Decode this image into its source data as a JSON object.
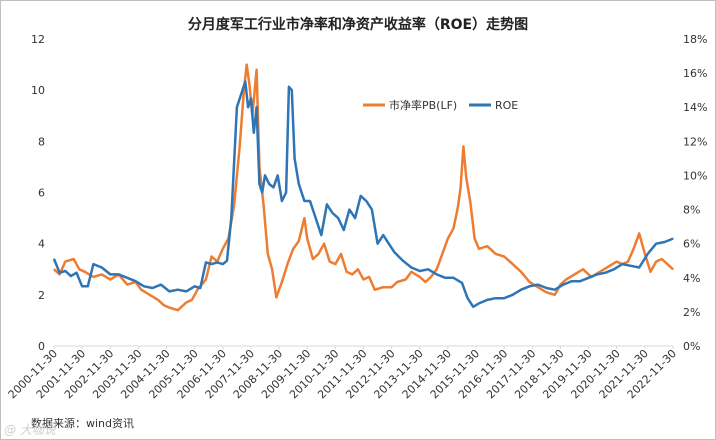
{
  "chart_data": {
    "type": "line",
    "title": "分月度军工行业市净率和净资产收益率（ROE）走势图",
    "source": "数据来源：wind资讯",
    "watermark": "@ 大咖说",
    "legend_position": "top-center",
    "grid": false,
    "y_left": {
      "ticks": [
        "0",
        "2",
        "4",
        "6",
        "8",
        "10",
        "12"
      ],
      "range": [
        0,
        12
      ]
    },
    "y_right": {
      "ticks": [
        "0%",
        "2%",
        "4%",
        "6%",
        "8%",
        "10%",
        "12%",
        "14%",
        "16%",
        "18%"
      ],
      "range": [
        0,
        18
      ]
    },
    "x_ticks": [
      "2000-11-30",
      "2001-11-30",
      "2002-11-30",
      "2003-11-30",
      "2004-11-30",
      "2005-11-30",
      "2006-11-30",
      "2007-11-30",
      "2008-11-30",
      "2009-11-30",
      "2010-11-30",
      "2011-11-30",
      "2012-11-30",
      "2013-11-30",
      "2014-11-30",
      "2015-11-30",
      "2016-11-30",
      "2017-11-30",
      "2018-11-30",
      "2019-11-30",
      "2020-11-30",
      "2021-11-30",
      "2022-11-30"
    ],
    "series": [
      {
        "name": "市净率PB(LF)",
        "axis": "left",
        "color": "#ed7d31",
        "x": [
          2000.9,
          2001.1,
          2001.3,
          2001.6,
          2001.8,
          2002.0,
          2002.3,
          2002.6,
          2002.9,
          2003.2,
          2003.5,
          2003.8,
          2004.0,
          2004.3,
          2004.6,
          2004.8,
          2005.0,
          2005.3,
          2005.6,
          2005.8,
          2006.0,
          2006.3,
          2006.5,
          2006.7,
          2006.9,
          2007.1,
          2007.3,
          2007.5,
          2007.65,
          2007.75,
          2007.85,
          2007.95,
          2008.1,
          2008.2,
          2008.35,
          2008.5,
          2008.65,
          2008.8,
          2009.0,
          2009.2,
          2009.4,
          2009.6,
          2009.8,
          2009.9,
          2010.1,
          2010.3,
          2010.5,
          2010.7,
          2010.9,
          2011.1,
          2011.3,
          2011.5,
          2011.7,
          2011.9,
          2012.1,
          2012.3,
          2012.6,
          2012.9,
          2013.1,
          2013.4,
          2013.6,
          2013.9,
          2014.1,
          2014.3,
          2014.5,
          2014.7,
          2014.9,
          2015.1,
          2015.25,
          2015.35,
          2015.45,
          2015.55,
          2015.7,
          2015.85,
          2016.0,
          2016.3,
          2016.6,
          2016.9,
          2017.2,
          2017.5,
          2017.8,
          2018.1,
          2018.4,
          2018.7,
          2018.9,
          2019.1,
          2019.4,
          2019.7,
          2020.0,
          2020.3,
          2020.6,
          2020.9,
          2021.1,
          2021.3,
          2021.5,
          2021.7,
          2021.9,
          2022.1,
          2022.3,
          2022.5,
          2022.7,
          2022.9
        ],
        "y": [
          3.0,
          2.8,
          3.3,
          3.4,
          3.0,
          2.9,
          2.7,
          2.8,
          2.6,
          2.8,
          2.4,
          2.5,
          2.2,
          2.0,
          1.8,
          1.6,
          1.5,
          1.4,
          1.7,
          1.8,
          2.2,
          2.6,
          3.5,
          3.3,
          3.8,
          4.2,
          5.5,
          7.8,
          10.0,
          11.0,
          10.2,
          9.0,
          10.8,
          7.0,
          5.5,
          3.6,
          3.0,
          1.9,
          2.5,
          3.2,
          3.8,
          4.1,
          5.0,
          4.2,
          3.4,
          3.6,
          4.0,
          3.3,
          3.2,
          3.6,
          2.9,
          2.8,
          3.0,
          2.6,
          2.7,
          2.2,
          2.3,
          2.3,
          2.5,
          2.6,
          2.9,
          2.7,
          2.5,
          2.7,
          3.0,
          3.6,
          4.2,
          4.6,
          5.4,
          6.2,
          7.8,
          6.6,
          5.6,
          4.2,
          3.8,
          3.9,
          3.6,
          3.5,
          3.2,
          2.9,
          2.5,
          2.3,
          2.1,
          2.0,
          2.4,
          2.6,
          2.8,
          3.0,
          2.7,
          2.9,
          3.1,
          3.3,
          3.2,
          3.3,
          3.8,
          4.4,
          3.6,
          2.9,
          3.3,
          3.4,
          3.2,
          3.0
        ]
      },
      {
        "name": "ROE",
        "axis": "right",
        "color": "#2e75b6",
        "x": [
          2000.9,
          2001.1,
          2001.3,
          2001.5,
          2001.7,
          2001.9,
          2002.1,
          2002.3,
          2002.6,
          2002.9,
          2003.2,
          2003.5,
          2003.8,
          2004.1,
          2004.4,
          2004.7,
          2005.0,
          2005.3,
          2005.6,
          2005.9,
          2006.1,
          2006.3,
          2006.5,
          2006.7,
          2006.9,
          2007.05,
          2007.2,
          2007.4,
          2007.6,
          2007.7,
          2007.8,
          2007.9,
          2008.0,
          2008.1,
          2008.2,
          2008.3,
          2008.4,
          2008.55,
          2008.7,
          2008.85,
          2009.0,
          2009.15,
          2009.25,
          2009.35,
          2009.45,
          2009.6,
          2009.8,
          2010.0,
          2010.2,
          2010.4,
          2010.6,
          2010.8,
          2011.0,
          2011.2,
          2011.4,
          2011.6,
          2011.8,
          2012.0,
          2012.2,
          2012.4,
          2012.6,
          2012.8,
          2013.0,
          2013.3,
          2013.6,
          2013.9,
          2014.2,
          2014.5,
          2014.8,
          2015.1,
          2015.4,
          2015.6,
          2015.8,
          2016.0,
          2016.3,
          2016.6,
          2016.9,
          2017.2,
          2017.5,
          2017.8,
          2018.1,
          2018.4,
          2018.7,
          2019.0,
          2019.3,
          2019.6,
          2019.9,
          2020.2,
          2020.5,
          2020.8,
          2021.1,
          2021.4,
          2021.7,
          2022.0,
          2022.3,
          2022.6,
          2022.9
        ],
        "y": [
          5.1,
          4.3,
          4.4,
          4.1,
          4.3,
          3.5,
          3.5,
          4.8,
          4.6,
          4.2,
          4.2,
          4.0,
          3.8,
          3.5,
          3.4,
          3.6,
          3.2,
          3.3,
          3.2,
          3.5,
          3.4,
          4.9,
          4.8,
          4.9,
          4.8,
          5.0,
          7.5,
          14.0,
          15.0,
          15.5,
          14.0,
          14.5,
          12.5,
          14.0,
          9.5,
          9.0,
          10.0,
          9.5,
          9.3,
          10.0,
          8.5,
          9.0,
          15.2,
          15.0,
          11.0,
          9.5,
          8.5,
          8.5,
          7.5,
          6.5,
          8.3,
          7.8,
          7.5,
          6.8,
          8.0,
          7.5,
          8.8,
          8.5,
          8.0,
          6.0,
          6.5,
          6.0,
          5.5,
          5.0,
          4.6,
          4.4,
          4.5,
          4.2,
          4.0,
          4.0,
          3.7,
          2.8,
          2.3,
          2.5,
          2.7,
          2.8,
          2.8,
          3.0,
          3.3,
          3.5,
          3.6,
          3.4,
          3.3,
          3.6,
          3.8,
          3.8,
          4.0,
          4.2,
          4.3,
          4.5,
          4.8,
          4.7,
          4.6,
          5.4,
          6.0,
          6.1,
          6.3
        ]
      }
    ]
  }
}
